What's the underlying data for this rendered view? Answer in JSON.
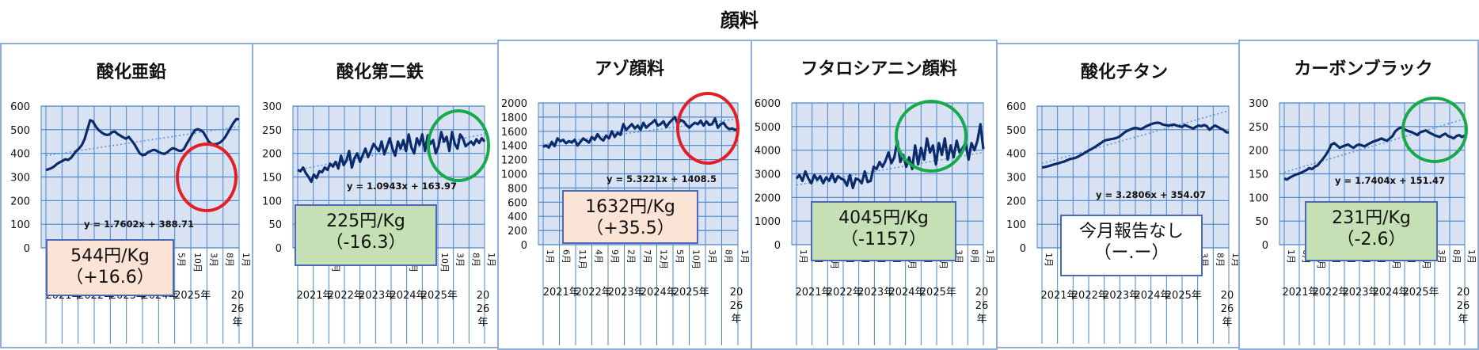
{
  "page": {
    "title": "顔料"
  },
  "colors": {
    "plot_bg": "#d9e2f3",
    "grid": "#4a86c8",
    "line": "#0b2b6a",
    "trend": "#5b9bd5",
    "circle_red": "#e21f26",
    "circle_green": "#17a94a",
    "box_orange": "#fbe3d6",
    "box_green": "#c5e0b4",
    "box_white": "#ffffff",
    "box_border": "#4a69b7"
  },
  "chart_data": [
    {
      "type": "line",
      "title": "酸化亜鉛",
      "ylim": [
        0,
        600
      ],
      "yticks": [
        0,
        100,
        200,
        300,
        400,
        500,
        600
      ],
      "equation": "y = 1.7602x + 388.71",
      "trend": {
        "slope": 1.7602,
        "intercept": 388.71
      },
      "series": [
        {
          "values": [
            330,
            333,
            338,
            345,
            355,
            362,
            368,
            375,
            372,
            380,
            395,
            410,
            420,
            435,
            460,
            500,
            540,
            535,
            515,
            500,
            490,
            482,
            478,
            480,
            490,
            492,
            482,
            475,
            468,
            462,
            470,
            455,
            440,
            420,
            400,
            392,
            395,
            405,
            410,
            415,
            412,
            405,
            400,
            398,
            405,
            415,
            422,
            418,
            412,
            410,
            418,
            440,
            460,
            480,
            498,
            502,
            498,
            490,
            470,
            450,
            440,
            438,
            440,
            445,
            455,
            470,
            490,
            510,
            530,
            545,
            544
          ]
        }
      ],
      "circle": "red",
      "annotation": {
        "line1": "544円/Kg",
        "line2": "（+16.6）",
        "style": "orange"
      }
    },
    {
      "type": "line",
      "title": "酸化第二鉄",
      "ylim": [
        0,
        300
      ],
      "yticks": [
        0,
        50,
        100,
        150,
        200,
        250,
        300
      ],
      "equation": "y = 1.0943x + 163.97",
      "trend": {
        "slope": 1.0943,
        "intercept": 163.97
      },
      "series": [
        {
          "values": [
            165,
            162,
            170,
            158,
            150,
            140,
            155,
            148,
            162,
            160,
            170,
            165,
            178,
            172,
            182,
            168,
            195,
            175,
            185,
            205,
            170,
            190,
            200,
            182,
            196,
            210,
            192,
            205,
            220,
            212,
            205,
            225,
            198,
            215,
            232,
            210,
            195,
            225,
            210,
            228,
            205,
            240,
            212,
            200,
            232,
            218,
            240,
            205,
            238,
            220,
            228,
            200,
            215,
            245,
            225,
            235,
            205,
            245,
            220,
            210,
            240,
            232,
            215,
            220,
            225,
            218,
            230,
            222,
            232,
            225
          ]
        }
      ],
      "circle": "green",
      "annotation": {
        "line1": "225円/Kg",
        "line2": "（-16.3）",
        "style": "green"
      }
    },
    {
      "type": "line",
      "title": "アゾ顔料",
      "ylim": [
        0,
        2000
      ],
      "yticks": [
        0,
        200,
        400,
        600,
        800,
        1000,
        1200,
        1400,
        1600,
        1800,
        2000
      ],
      "equation": "y = 5.3221x + 1408.5",
      "trend": {
        "slope": 5.3221,
        "intercept": 1408.5
      },
      "series": [
        {
          "values": [
            1380,
            1400,
            1370,
            1450,
            1390,
            1500,
            1460,
            1480,
            1430,
            1460,
            1440,
            1480,
            1400,
            1450,
            1500,
            1470,
            1440,
            1520,
            1480,
            1560,
            1500,
            1470,
            1540,
            1500,
            1600,
            1520,
            1580,
            1550,
            1700,
            1620,
            1660,
            1700,
            1640,
            1680,
            1620,
            1720,
            1650,
            1690,
            1720,
            1760,
            1680,
            1700,
            1740,
            1660,
            1720,
            1760,
            1800,
            1700,
            1760,
            1740,
            1690,
            1650,
            1690,
            1720,
            1700,
            1750,
            1680,
            1740,
            1690,
            1700,
            1780,
            1650,
            1700,
            1720,
            1660,
            1630,
            1640,
            1620,
            1632
          ]
        }
      ],
      "circle": "red",
      "annotation": {
        "line1": "1632円/Kg",
        "line2": "（+35.5）",
        "style": "orange"
      }
    },
    {
      "type": "line",
      "title": "フタロシアニン顔料",
      "ylim": [
        0,
        6000
      ],
      "yticks": [
        0,
        1000,
        2000,
        3000,
        4000,
        5000,
        6000
      ],
      "equation": "",
      "trend": {
        "slope": 22.0,
        "intercept": 2500
      },
      "series": [
        {
          "values": [
            2800,
            2950,
            2700,
            3100,
            2800,
            2600,
            2950,
            2750,
            2900,
            2600,
            2850,
            2700,
            3000,
            2650,
            2900,
            2800,
            2750,
            2500,
            2950,
            2400,
            2800,
            2750,
            2600,
            3100,
            2650,
            2700,
            3300,
            3200,
            3500,
            3300,
            3550,
            3900,
            3450,
            3700,
            4400,
            3500,
            3800,
            3300,
            3700,
            3200,
            4200,
            3400,
            4100,
            3600,
            4500,
            3900,
            4200,
            3400,
            4300,
            3800,
            4500,
            3600,
            4200,
            3700,
            4400,
            3900,
            4100,
            4300,
            3600,
            4300,
            4000,
            4400,
            5100,
            4045
          ]
        }
      ],
      "circle": "green",
      "annotation": {
        "line1": "4045円/Kg",
        "line2": "（-1157）",
        "style": "green"
      }
    },
    {
      "type": "line",
      "title": "酸化チタン",
      "ylim": [
        0,
        600
      ],
      "yticks": [
        0,
        100,
        200,
        300,
        400,
        500,
        600
      ],
      "equation": "y = 3.2806x + 354.07",
      "trend": {
        "slope": 3.2806,
        "intercept": 354.07
      },
      "series": [
        {
          "values": [
            340,
            342,
            345,
            348,
            352,
            355,
            358,
            362,
            365,
            370,
            375,
            378,
            380,
            385,
            392,
            398,
            405,
            412,
            418,
            425,
            432,
            440,
            448,
            455,
            458,
            460,
            462,
            465,
            470,
            478,
            488,
            495,
            500,
            505,
            508,
            505,
            502,
            508,
            515,
            520,
            525,
            528,
            530,
            528,
            522,
            520,
            518,
            520,
            522,
            518,
            515,
            512,
            520,
            515,
            510,
            505,
            512,
            518,
            515,
            520,
            515,
            500,
            510,
            518,
            512,
            505,
            500,
            490,
            488
          ]
        }
      ],
      "circle": "",
      "annotation": {
        "line1": "今月報告なし",
        "line2": "（ー.ー）",
        "style": "white"
      }
    },
    {
      "type": "line",
      "title": "カーボンブラック",
      "ylim": [
        0,
        300
      ],
      "yticks": [
        0,
        50,
        100,
        150,
        200,
        250,
        300
      ],
      "equation": "y = 1.7404x + 151.47",
      "trend": {
        "slope": 1.7404,
        "intercept": 151.47
      },
      "series": [
        {
          "values": [
            140,
            138,
            142,
            145,
            148,
            150,
            152,
            155,
            158,
            162,
            160,
            165,
            168,
            175,
            182,
            190,
            200,
            212,
            215,
            210,
            205,
            208,
            210,
            212,
            208,
            205,
            210,
            212,
            210,
            208,
            212,
            215,
            218,
            220,
            222,
            225,
            222,
            220,
            225,
            230,
            240,
            245,
            248,
            245,
            242,
            240,
            238,
            235,
            232,
            238,
            240,
            242,
            238,
            235,
            232,
            230,
            228,
            232,
            235,
            230,
            228,
            225,
            230,
            232,
            228,
            231
          ]
        }
      ],
      "circle": "green",
      "annotation": {
        "line1": "231円/Kg",
        "line2": "（-2.6）",
        "style": "green"
      }
    }
  ],
  "x_axis": {
    "ticks": [
      "1月",
      "6月",
      "11月",
      "4月",
      "9月",
      "2月",
      "7月",
      "12月",
      "5月",
      "10月",
      "3月",
      "8月",
      "1月"
    ],
    "years": [
      "2021年",
      "2022年",
      "2023年",
      "2024年",
      "2025年"
    ],
    "last_year": [
      "20",
      "26",
      "年"
    ]
  }
}
